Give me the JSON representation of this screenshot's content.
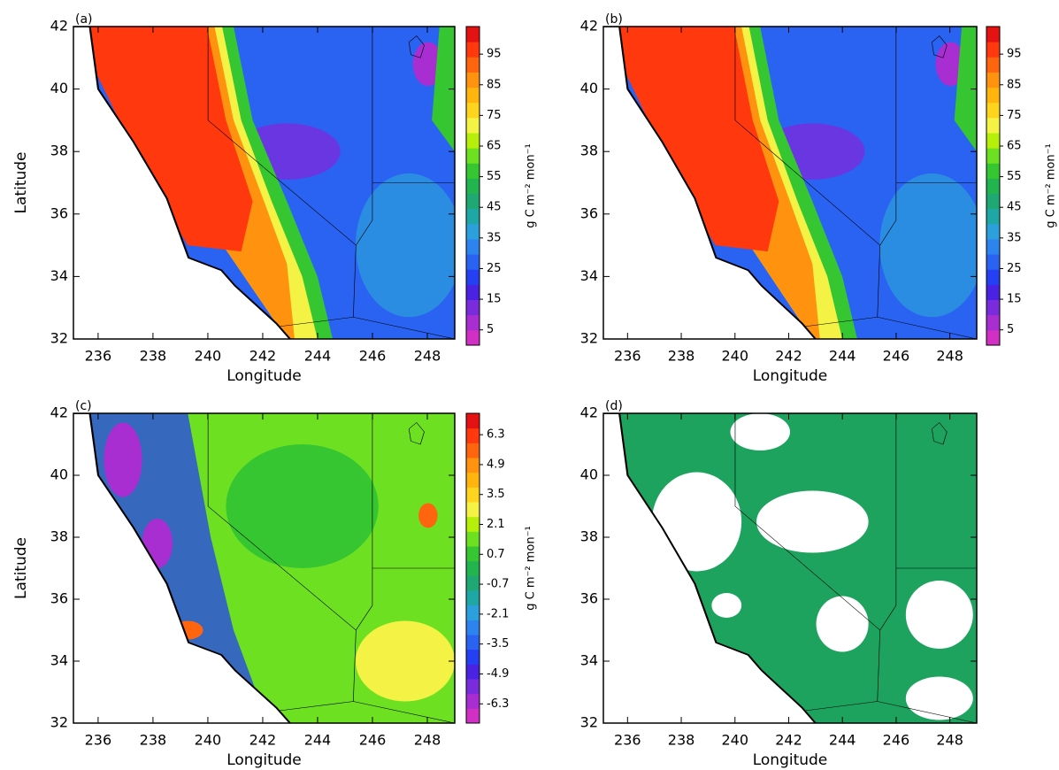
{
  "panels": [
    {
      "label": "(a)",
      "xlabel": "Longitude",
      "ylabel": "Latitude",
      "map": "sim",
      "xlim": [
        235.1,
        249
      ],
      "ylim": [
        32,
        42
      ],
      "xticks": [
        236,
        238,
        240,
        242,
        244,
        246,
        248
      ],
      "yticks": [
        32,
        34,
        36,
        38,
        40,
        42
      ],
      "colorbar": {
        "title": "g C m⁻² mon⁻¹",
        "lim": [
          0,
          104
        ],
        "ticks": [
          5,
          15,
          25,
          35,
          45,
          55,
          65,
          75,
          85,
          95
        ],
        "colors": [
          "#d22fc4",
          "#a82ed2",
          "#7a2cdc",
          "#4a22e4",
          "#2440f2",
          "#2a62f2",
          "#2e84ee",
          "#2ca0dc",
          "#1fa7a6",
          "#1fa874",
          "#22b44e",
          "#36c632",
          "#6ee022",
          "#b6f00a",
          "#f4f244",
          "#ffd41e",
          "#ffb40e",
          "#ff920e",
          "#ff650e",
          "#ff380e",
          "#e41212"
        ]
      }
    },
    {
      "label": "(b)",
      "xlabel": "Longitude",
      "map": "sim",
      "xlim": [
        235.1,
        249
      ],
      "ylim": [
        32,
        42
      ],
      "xticks": [
        236,
        238,
        240,
        242,
        244,
        246,
        248
      ],
      "yticks": [
        32,
        34,
        36,
        38,
        40,
        42
      ],
      "colorbar": {
        "title": "g C m⁻² mon⁻¹",
        "lim": [
          0,
          104
        ],
        "ticks": [
          5,
          15,
          25,
          35,
          45,
          55,
          65,
          75,
          85,
          95
        ],
        "colors": [
          "#d22fc4",
          "#a82ed2",
          "#7a2cdc",
          "#4a22e4",
          "#2440f2",
          "#2a62f2",
          "#2e84ee",
          "#2ca0dc",
          "#1fa7a6",
          "#1fa874",
          "#22b44e",
          "#36c632",
          "#6ee022",
          "#b6f00a",
          "#f4f244",
          "#ffd41e",
          "#ffb40e",
          "#ff920e",
          "#ff650e",
          "#ff380e",
          "#e41212"
        ]
      }
    },
    {
      "label": "(c)",
      "xlabel": "Longitude",
      "ylabel": "Latitude",
      "map": "diff",
      "xlim": [
        235.1,
        249
      ],
      "ylim": [
        32,
        42
      ],
      "xticks": [
        236,
        238,
        240,
        242,
        244,
        246,
        248
      ],
      "yticks": [
        32,
        34,
        36,
        38,
        40,
        42
      ],
      "colorbar": {
        "title": "g C m⁻² mon⁻¹",
        "lim": [
          -7.2,
          7.3
        ],
        "ticks": [
          -6.3,
          -4.9,
          -3.5,
          -2.1,
          -0.7,
          0.7,
          2.1,
          3.5,
          4.9,
          6.3
        ],
        "colors": [
          "#d22fc4",
          "#a82ed2",
          "#7a2cdc",
          "#4a22e4",
          "#2440f2",
          "#2a62f2",
          "#2e84ee",
          "#2ca0dc",
          "#1fa7a6",
          "#1fa874",
          "#22b44e",
          "#36c632",
          "#6ee022",
          "#b6f00a",
          "#f4f244",
          "#ffd41e",
          "#ffb40e",
          "#ff920e",
          "#ff650e",
          "#ff380e",
          "#e41212"
        ]
      }
    },
    {
      "label": "(d)",
      "xlabel": "Longitude",
      "map": "sig",
      "xlim": [
        235.1,
        249
      ],
      "ylim": [
        32,
        42
      ],
      "xticks": [
        236,
        238,
        240,
        242,
        244,
        246,
        248
      ],
      "yticks": [
        32,
        34,
        36,
        38,
        40,
        42
      ]
    }
  ]
}
